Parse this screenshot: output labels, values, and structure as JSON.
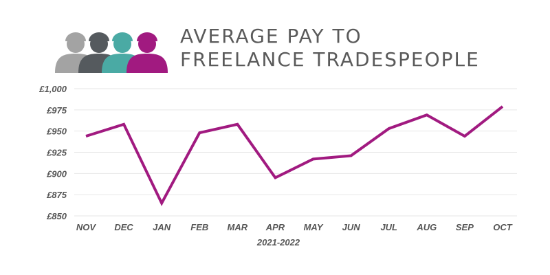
{
  "header": {
    "title_line1": "AVERAGE PAY TO",
    "title_line2": "FREELANCE TRADESPEOPLE",
    "icon": "tradespeople-group-icon",
    "icon_colors": [
      "#a3a3a3",
      "#555a5e",
      "#4aaaa4",
      "#a11a80"
    ]
  },
  "chart_data": {
    "type": "line",
    "title": "AVERAGE PAY TO FREELANCE TRADESPEOPLE",
    "xlabel": "2021-2022",
    "ylabel": "",
    "categories": [
      "NOV",
      "DEC",
      "JAN",
      "FEB",
      "MAR",
      "APR",
      "MAY",
      "JUN",
      "JUL",
      "AUG",
      "SEP",
      "OCT"
    ],
    "series": [
      {
        "values": [
          944,
          958,
          865,
          948,
          958,
          895,
          917,
          921,
          953,
          969,
          944,
          979
        ]
      }
    ],
    "ylim": [
      850,
      1000
    ],
    "yticks": [
      850,
      875,
      900,
      925,
      950,
      975,
      1000
    ],
    "ytick_labels": [
      "£850",
      "£875",
      "£900",
      "£925",
      "£950",
      "£975",
      "£1,000"
    ],
    "grid": true,
    "line_color": "#a11a80",
    "grid_color": "#e6e6e6"
  }
}
